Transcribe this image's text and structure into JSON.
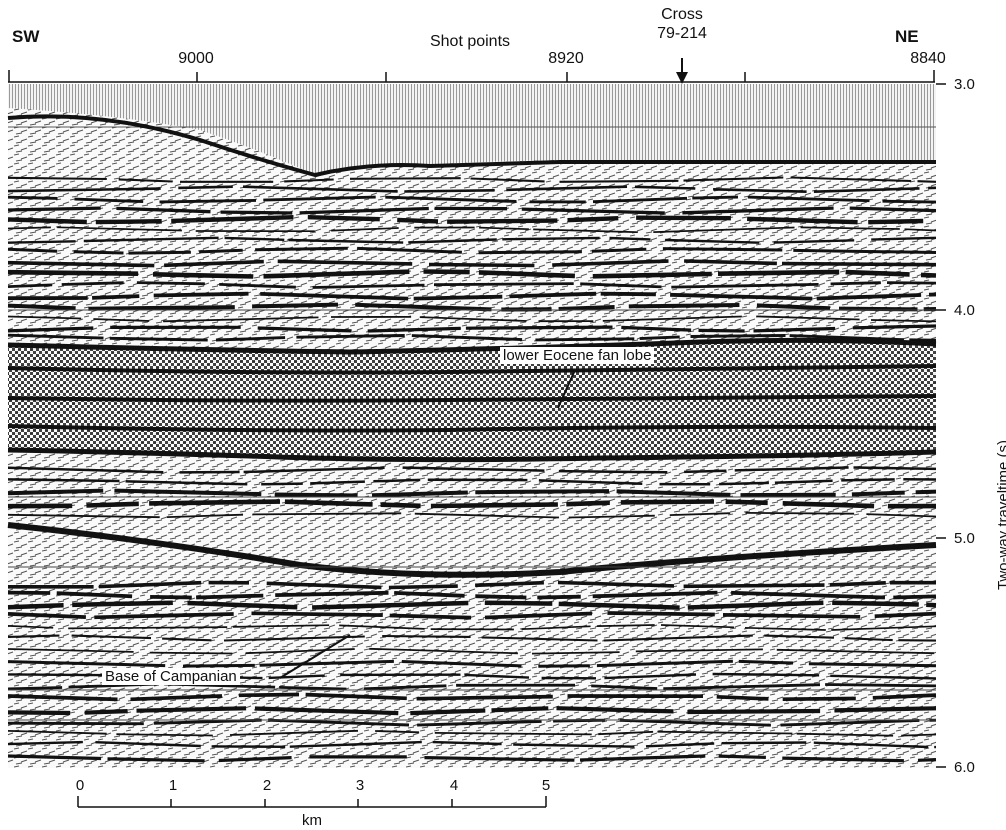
{
  "header": {
    "left_direction": "SW",
    "right_direction": "NE",
    "axis_title": "Shot points",
    "cross_label_line1": "Cross",
    "cross_label_line2": "79-214",
    "shot_points": [
      "9000",
      "8920",
      "8840"
    ]
  },
  "right_axis": {
    "ticks": [
      "3.0",
      "4.0",
      "5.0",
      "6.0"
    ],
    "label": "Two-way traveltime (s)"
  },
  "annotations": {
    "fan_lobe": "lower Eocene fan lobe",
    "campanian": "Base of Campanian"
  },
  "scale_bar": {
    "ticks": [
      "0",
      "1",
      "2",
      "3",
      "4",
      "5"
    ],
    "unit": "km"
  },
  "colors": {
    "ink": "#111111",
    "paper": "#ffffff",
    "fan_fill": "#bdbdbd"
  }
}
